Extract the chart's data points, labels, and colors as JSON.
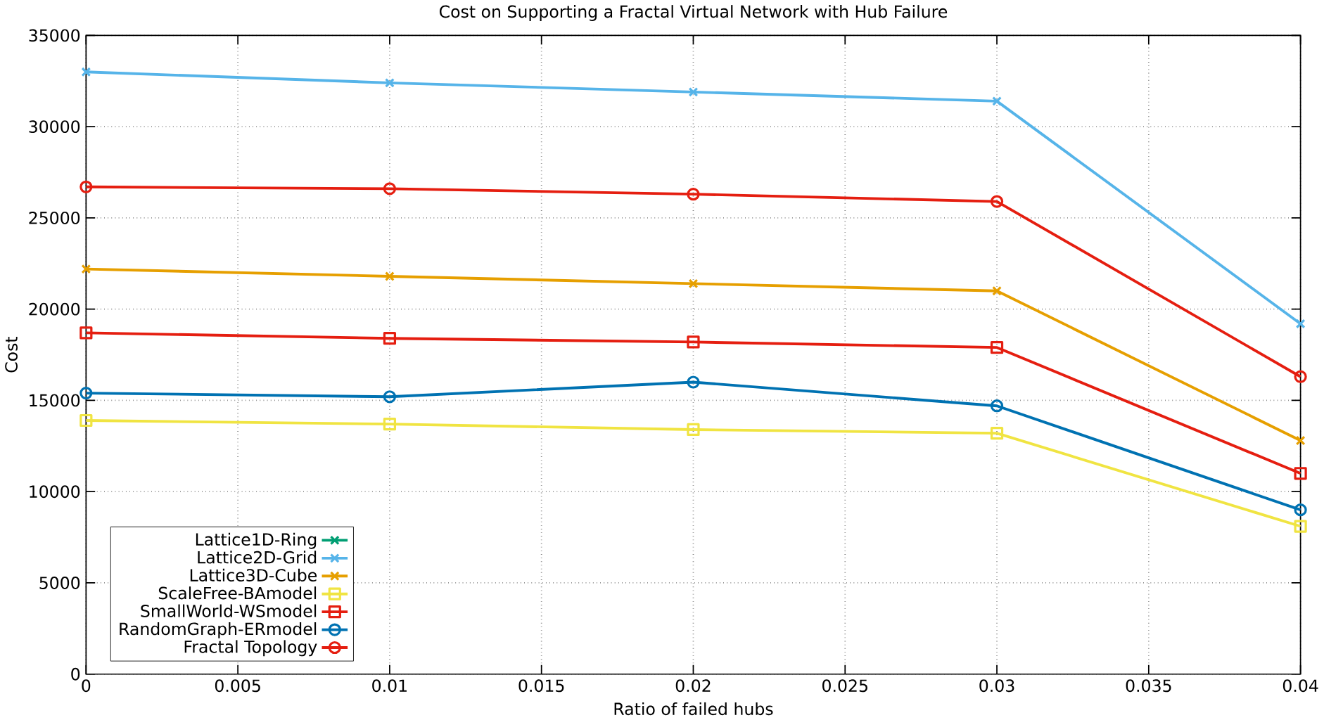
{
  "chart_data": {
    "type": "line",
    "title": "Cost on Supporting a Fractal Virtual Network with Hub Failure",
    "xlabel": "Ratio of failed hubs",
    "ylabel": "Cost",
    "x": [
      0,
      0.01,
      0.02,
      0.03,
      0.04
    ],
    "xlim": [
      0,
      0.04
    ],
    "xticks": [
      0,
      0.005,
      0.01,
      0.015,
      0.02,
      0.025,
      0.03,
      0.035,
      0.04
    ],
    "ylim": [
      0,
      35000
    ],
    "yticks": [
      0,
      5000,
      10000,
      15000,
      20000,
      25000,
      30000,
      35000
    ],
    "grid": true,
    "legend": "bottom left",
    "line_style": "solid",
    "series": [
      {
        "name": "Lattice1D-Ring",
        "color": "#009e73",
        "marker": "cross",
        "values": [
          null,
          null,
          null,
          null,
          null
        ]
      },
      {
        "name": "Lattice2D-Grid",
        "color": "#56b4e9",
        "marker": "cross",
        "values": [
          33000,
          32400,
          31900,
          31400,
          19200
        ]
      },
      {
        "name": "Lattice3D-Cube",
        "color": "#e69f00",
        "marker": "cross",
        "values": [
          22200,
          21800,
          21400,
          21000,
          12800
        ]
      },
      {
        "name": "ScaleFree-BAmodel",
        "color": "#f0e442",
        "marker": "square",
        "values": [
          13900,
          13700,
          13400,
          13200,
          8100
        ]
      },
      {
        "name": "SmallWorld-WSmodel",
        "color": "#e51e10",
        "marker": "square",
        "values": [
          18700,
          18400,
          18200,
          17900,
          11000
        ]
      },
      {
        "name": "RandomGraph-ERmodel",
        "color": "#0072b2",
        "marker": "circle",
        "values": [
          15400,
          15200,
          16000,
          14700,
          9000
        ]
      },
      {
        "name": "Fractal Topology",
        "color": "#e51e10",
        "marker": "circle",
        "values": [
          26700,
          26600,
          26300,
          25900,
          16300
        ]
      }
    ]
  }
}
